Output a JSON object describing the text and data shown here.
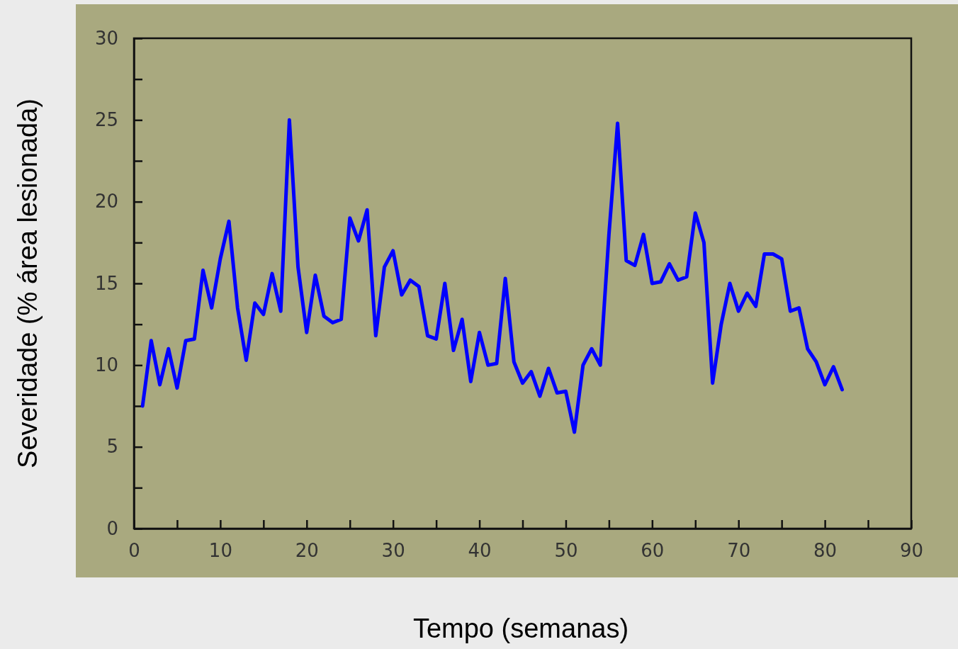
{
  "chart_data": {
    "type": "line",
    "xlabel": "Tempo (semanas)",
    "ylabel": "Severidade (% área lesionada)",
    "x": [
      1,
      2,
      3,
      4,
      5,
      6,
      7,
      8,
      9,
      10,
      11,
      12,
      13,
      14,
      15,
      16,
      17,
      18,
      19,
      20,
      21,
      22,
      23,
      24,
      25,
      26,
      27,
      28,
      29,
      30,
      31,
      32,
      33,
      34,
      35,
      36,
      37,
      38,
      39,
      40,
      41,
      42,
      43,
      44,
      45,
      46,
      47,
      48,
      49,
      50,
      51,
      52,
      53,
      54,
      55,
      56,
      57,
      58,
      59,
      60,
      61,
      62,
      63,
      64,
      65,
      66,
      67,
      68,
      69,
      70,
      71,
      72,
      73,
      74,
      75,
      76,
      77,
      78,
      79,
      80,
      81,
      82
    ],
    "series": [
      {
        "color": "#0000ff",
        "values": [
          7.5,
          11.5,
          8.8,
          11,
          8.6,
          11.5,
          11.6,
          15.8,
          13.5,
          16.5,
          18.8,
          13.5,
          10.3,
          13.8,
          13.1,
          15.6,
          13.3,
          25,
          16,
          12,
          15.5,
          13,
          12.6,
          12.8,
          19,
          17.6,
          19.5,
          11.8,
          16,
          17,
          14.3,
          15.2,
          14.8,
          11.8,
          11.6,
          15,
          10.9,
          12.8,
          9,
          12,
          10,
          10.1,
          15.3,
          10.2,
          8.9,
          9.6,
          8.1,
          9.8,
          8.3,
          8.4,
          5.9,
          10,
          11,
          10,
          18,
          24.8,
          16.4,
          16.1,
          18,
          15,
          15.1,
          16.2,
          15.2,
          15.4,
          19.3,
          17.5,
          8.9,
          12.5,
          15,
          13.3,
          14.4,
          13.6,
          16.8,
          16.8,
          16.5,
          13.3,
          13.5,
          11,
          10.2,
          8.8,
          9.9,
          8.5
        ]
      }
    ],
    "xlim": [
      0,
      90
    ],
    "ylim": [
      0,
      30
    ],
    "xticks": [
      0,
      {
        "value": 5,
        "label": null
      },
      10,
      {
        "value": 15,
        "label": null
      },
      20,
      {
        "value": 25,
        "label": null
      },
      30,
      {
        "value": 35,
        "label": null
      },
      40,
      {
        "value": 45,
        "label": null
      },
      50,
      {
        "value": 55,
        "label": null
      },
      60,
      {
        "value": 65,
        "label": null
      },
      70,
      {
        "value": 75,
        "label": null
      },
      80,
      {
        "value": 85,
        "label": null
      },
      90
    ],
    "yticks": [
      0,
      {
        "value": 2.5,
        "label": null
      },
      5,
      {
        "value": 7.5,
        "label": null
      },
      10,
      {
        "value": 12.5,
        "label": null
      },
      15,
      {
        "value": 17.5,
        "label": null
      },
      20,
      {
        "value": 22.5,
        "label": null
      },
      25,
      {
        "value": 27.5,
        "label": null
      },
      30
    ],
    "grid": false,
    "marker": "none",
    "line_style": "solid"
  }
}
